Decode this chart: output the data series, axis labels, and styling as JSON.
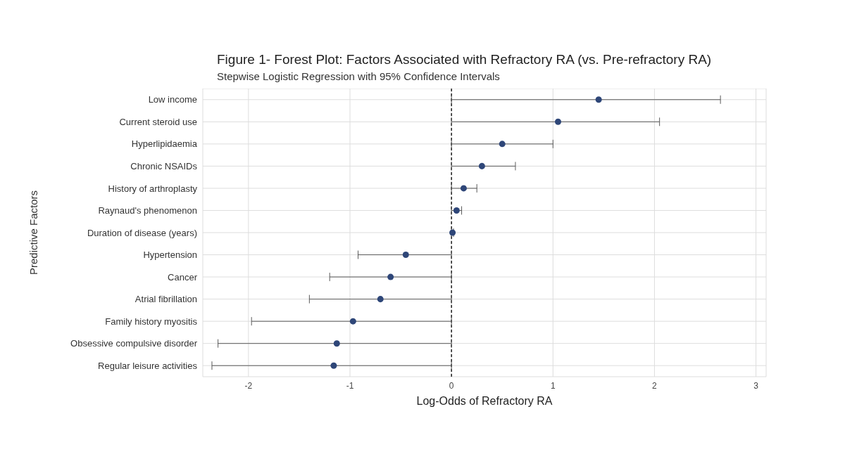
{
  "chart_data": {
    "type": "scatter",
    "orientation": "horizontal",
    "title": "Figure 1- Forest Plot: Factors Associated with Refractory RA (vs. Pre-refractory RA)",
    "subtitle": "Stepwise Logistic Regression with 95% Confidence Intervals",
    "xlabel": "Log-Odds of Refractory RA",
    "ylabel": "Predictive Factors",
    "categories": [
      "Low income",
      "Current steroid use",
      "Hyperlipidaemia",
      "Chronic NSAIDs",
      "History of arthroplasty",
      "Raynaud's phenomenon",
      "Duration of disease (years)",
      "Hypertension",
      "Cancer",
      "Atrial fibrillation",
      "Family history myositis",
      "Obsessive compulsive disorder",
      "Regular leisure activities"
    ],
    "values": [
      1.45,
      1.05,
      0.5,
      0.3,
      0.12,
      0.05,
      0.01,
      -0.45,
      -0.6,
      -0.7,
      -0.97,
      -1.13,
      -1.16
    ],
    "errors": [
      [
        0,
        2.65
      ],
      [
        0,
        2.05
      ],
      [
        0,
        1.0
      ],
      [
        0,
        0.63
      ],
      [
        0,
        0.25
      ],
      [
        0,
        0.1
      ],
      [
        0,
        0.02
      ],
      [
        -0.92,
        0
      ],
      [
        -1.2,
        0
      ],
      [
        -1.4,
        0
      ],
      [
        -1.97,
        0
      ],
      [
        -2.3,
        0
      ],
      [
        -2.36,
        0
      ]
    ],
    "color": "#2e4678",
    "marker": "circle",
    "grid": true,
    "xlim": [
      -2.45,
      3.1
    ],
    "xticks": [
      -2,
      -1,
      0,
      1,
      2,
      3
    ],
    "ref_lines": [
      {
        "axis": "x",
        "value": 0,
        "line_style": "dashed",
        "color": "#000000"
      }
    ]
  }
}
